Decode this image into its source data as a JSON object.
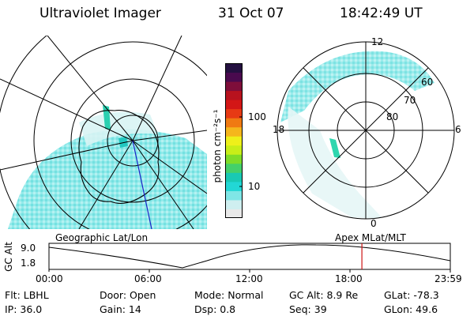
{
  "header": {
    "title": "Ultraviolet Imager",
    "date": "31 Oct 07",
    "time": "18:42:49 UT"
  },
  "colorbar": {
    "label": "photon cm⁻²s⁻¹",
    "ticks": [
      "100",
      "10"
    ],
    "scale": "log",
    "colors": [
      "#e9e9e9",
      "#cfeff0",
      "#7fe6e6",
      "#22d7d5",
      "#19c9b4",
      "#44d06a",
      "#7fdc28",
      "#c8ee18",
      "#eef01a",
      "#f5b61c",
      "#f07a12",
      "#e73a14",
      "#d31616",
      "#b8121e",
      "#7e0e3a",
      "#4a0a4e",
      "#241040"
    ]
  },
  "left_panel": {
    "caption": "Geographic Lat/Lon",
    "icon": "geographic-polar-map"
  },
  "right_panel": {
    "caption": "Apex MLat/MLT",
    "mlt_labels": {
      "top": "12",
      "right": "6",
      "bottom": "0",
      "left": "18"
    },
    "lat_labels": [
      "60",
      "70",
      "80"
    ]
  },
  "altitude_strip": {
    "ylabel": "GC Alt",
    "ymax": "9.0",
    "ymin": "1.8",
    "time_ticks": [
      "00:00",
      "06:00",
      "12:00",
      "18:00",
      "23:59"
    ],
    "current_time_fraction": 0.7797,
    "marker_color": "#cc1111"
  },
  "info": {
    "filter": "Flt: LBHL",
    "ip": "IP: 36.0",
    "door": "Door: Open",
    "gain": "Gain: 14",
    "mode": "Mode: Normal",
    "dsp": "Dsp:      0.8",
    "gc_alt": "GC Alt: 8.9 Re",
    "seq": "Seq: 39",
    "glat": "GLat:  -78.3",
    "glon": "GLon:   49.6"
  }
}
